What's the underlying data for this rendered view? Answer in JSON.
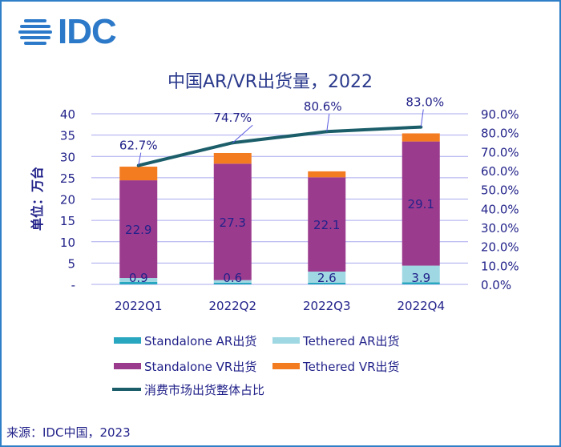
{
  "logo": {
    "text": "IDC"
  },
  "source": "来源：IDC中国，2023",
  "colors": {
    "standalone_ar": "#2aa7c0",
    "tethered_ar": "#9fd8e3",
    "standalone_vr": "#9b3b8e",
    "tethered_vr": "#f47c20",
    "share_line": "#1b5e6a",
    "text": "#22228a",
    "title": "#2b3a8c",
    "grid": "#a9a9ef"
  },
  "chart_data": {
    "type": "bar",
    "stacked": true,
    "title": "中国AR/VR出货量，2022",
    "ylabel": "单位：万台",
    "categories": [
      "2022Q1",
      "2022Q2",
      "2022Q3",
      "2022Q4"
    ],
    "ylim": [
      0,
      40
    ],
    "yticks": [
      "-",
      "5",
      "10",
      "15",
      "20",
      "25",
      "30",
      "35",
      "40"
    ],
    "y2lim": [
      0,
      90
    ],
    "y2ticks": [
      "0.0%",
      "10.0%",
      "20.0%",
      "30.0%",
      "40.0%",
      "50.0%",
      "60.0%",
      "70.0%",
      "80.0%",
      "90.0%"
    ],
    "grid": true,
    "legend_position": "bottom",
    "series": [
      {
        "name": "Standalone AR出货",
        "values": [
          0.6,
          0.4,
          0.4,
          0.5
        ]
      },
      {
        "name": "Tethered AR出货",
        "values": [
          0.9,
          0.6,
          2.6,
          3.9
        ],
        "labels": [
          "0.9",
          "0.6",
          "2.6",
          "3.9"
        ]
      },
      {
        "name": "Standalone VR出货",
        "values": [
          22.9,
          27.3,
          22.1,
          29.1
        ],
        "labels": [
          "22.9",
          "27.3",
          "22.1",
          "29.1"
        ]
      },
      {
        "name": "Tethered VR出货",
        "values": [
          3.2,
          2.5,
          1.4,
          1.9
        ]
      }
    ],
    "line": {
      "name": "消费市场出货整体占比",
      "axis": "right",
      "values": [
        62.7,
        74.7,
        80.6,
        83.0
      ],
      "labels": [
        "62.7%",
        "74.7%",
        "80.6%",
        "83.0%"
      ]
    }
  }
}
